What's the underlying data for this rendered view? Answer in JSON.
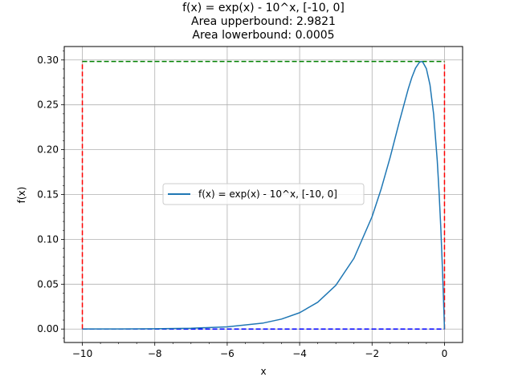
{
  "chart_data": {
    "type": "line",
    "title_lines": [
      "f(x) = exp(x) - 10^x, [-10, 0]",
      "Area upperbound: 2.9821",
      "Area lowerbound: 0.0005"
    ],
    "xlabel": "x",
    "ylabel": "f(x)",
    "xlim": [
      -10.5,
      0.5
    ],
    "ylim": [
      -0.015,
      0.315
    ],
    "grid": true,
    "legend_placement": "center",
    "x_ticks": [
      -10,
      -8,
      -6,
      -4,
      -2,
      0
    ],
    "x_tick_labels": [
      "−10",
      "−8",
      "−6",
      "−4",
      "−2",
      "0"
    ],
    "y_ticks": [
      0.0,
      0.05,
      0.1,
      0.15,
      0.2,
      0.25,
      0.3
    ],
    "y_tick_labels": [
      "0.00",
      "0.05",
      "0.10",
      "0.15",
      "0.20",
      "0.25",
      "0.30"
    ],
    "series": [
      {
        "name": "f(x) = exp(x) - 10^x, [-10, 0]",
        "color": "#1f77b4",
        "x": [
          -10,
          -9,
          -8,
          -7,
          -6,
          -5,
          -4.5,
          -4,
          -3.5,
          -3,
          -2.5,
          -2,
          -1.75,
          -1.5,
          -1.25,
          -1,
          -0.9,
          -0.8,
          -0.7,
          -0.65,
          -0.6,
          -0.5,
          -0.4,
          -0.3,
          -0.2,
          -0.15,
          -0.1,
          -0.05,
          0
        ],
        "y": [
          4.54e-05,
          0.000123,
          0.000335,
          0.000912,
          0.00248,
          0.00673,
          0.0111,
          0.0182,
          0.0299,
          0.0488,
          0.0789,
          0.1253,
          0.156,
          0.1915,
          0.2307,
          0.2679,
          0.2807,
          0.2909,
          0.297,
          0.2983,
          0.2977,
          0.2903,
          0.2721,
          0.2397,
          0.1878,
          0.1529,
          0.1111,
          0.0601,
          0.0
        ]
      }
    ],
    "bounds_box": {
      "x_range": [
        -10,
        0
      ],
      "upper_y": 0.2983,
      "lower_y": 0.0,
      "upper_color": "#008000",
      "lower_color": "#0000ff",
      "side_color": "#ff0000"
    }
  }
}
